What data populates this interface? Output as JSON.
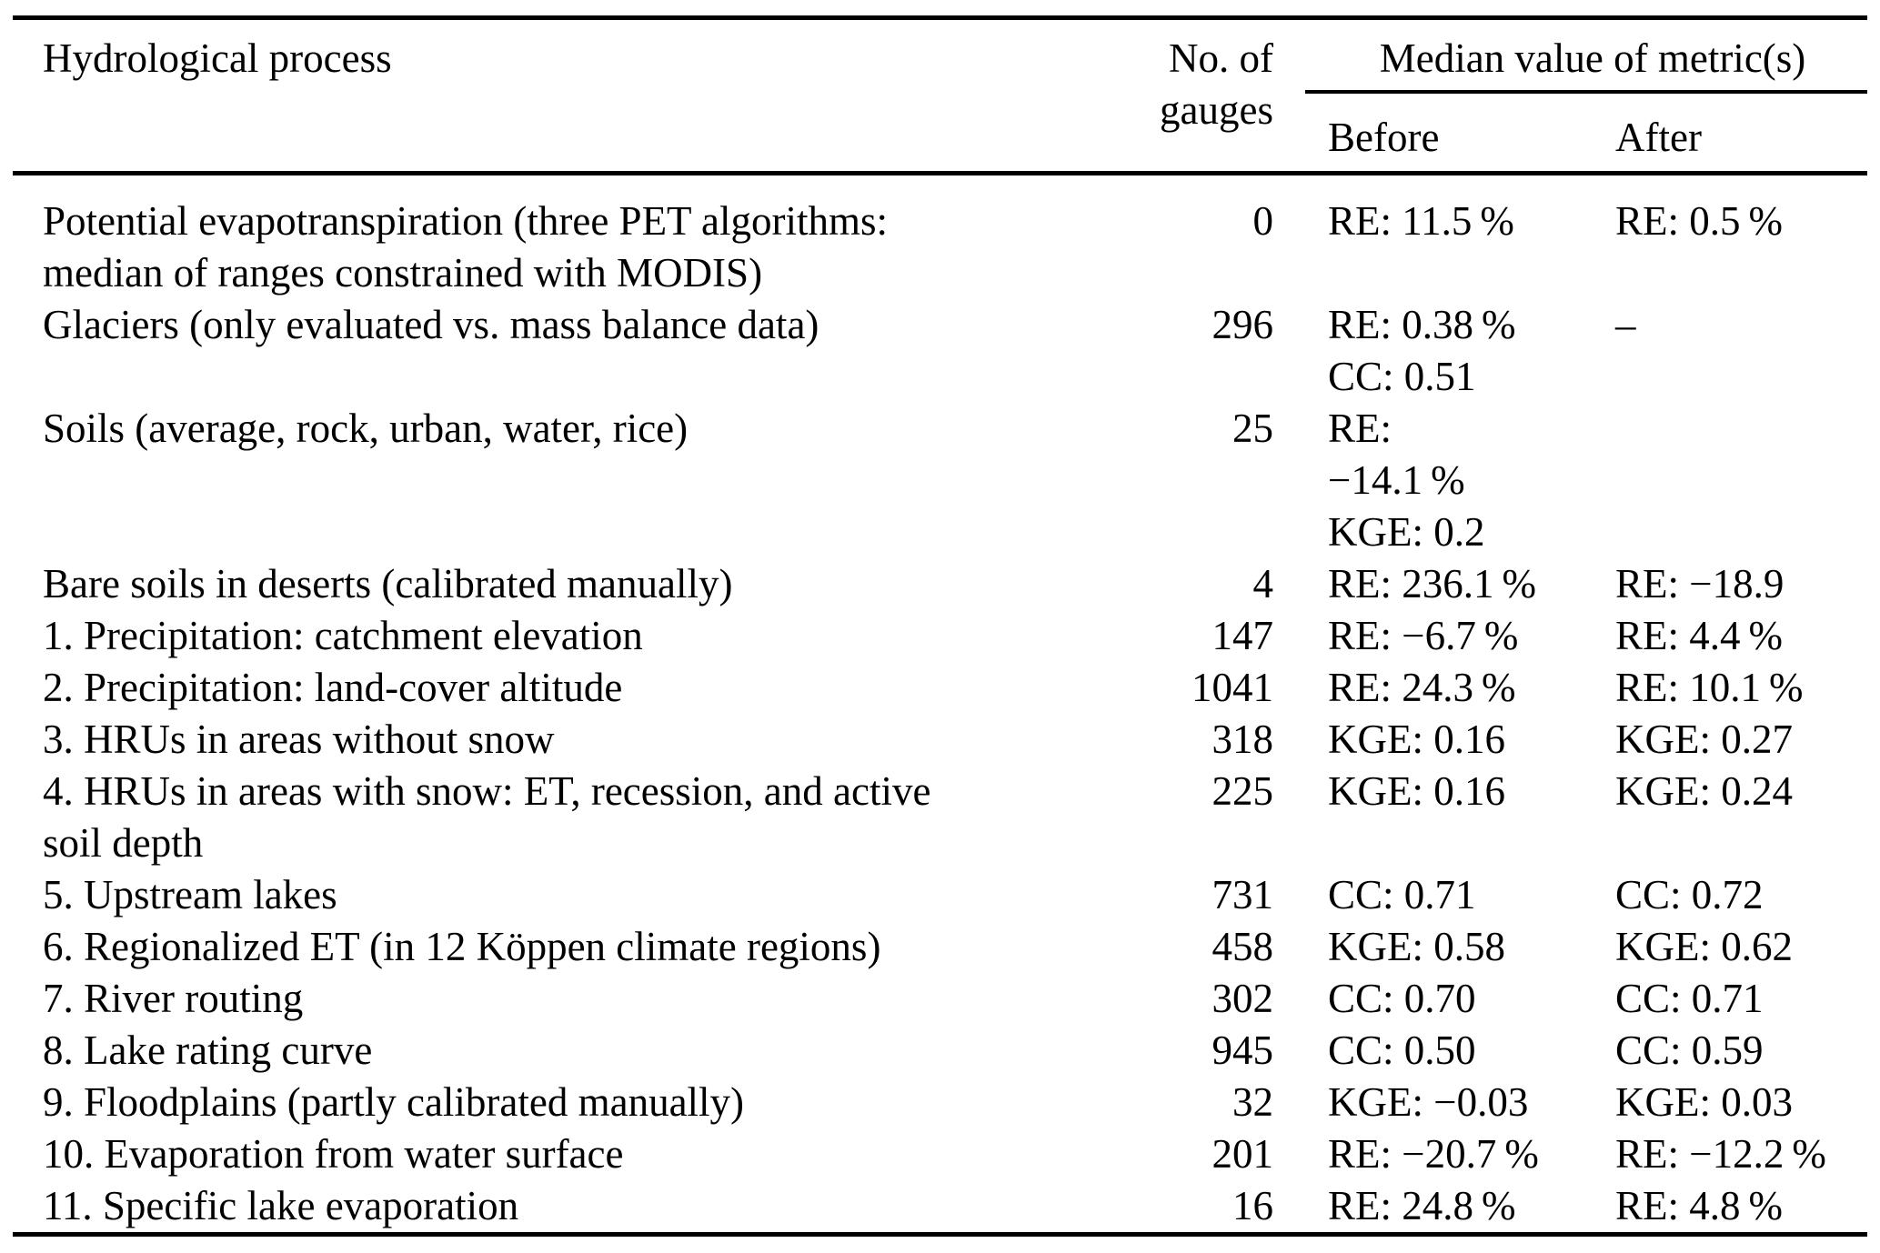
{
  "table": {
    "header": {
      "process": "Hydrological process",
      "gauges": "No. of gauges",
      "metrics_group": "Median value of metric(s)",
      "before": "Before",
      "after": "After"
    },
    "rows": [
      {
        "process": "Potential evapotranspiration (three PET algorithms:\nmedian of ranges constrained with MODIS)",
        "gauges": "0",
        "before": "RE: 11.5 %",
        "after": "RE: 0.5 %"
      },
      {
        "process": "Glaciers (only evaluated vs. mass balance data)",
        "gauges": "296",
        "before": "RE: 0.38 %\nCC: 0.51",
        "after": "–"
      },
      {
        "process": "Soils (average, rock, urban, water, rice)",
        "gauges": "25",
        "before": "RE:\n−14.1 %\nKGE: 0.2",
        "after": ""
      },
      {
        "process": "Bare soils in deserts (calibrated manually)",
        "gauges": "4",
        "before": "RE: 236.1 %",
        "after": "RE: −18.9"
      },
      {
        "process": "1. Precipitation: catchment elevation",
        "gauges": "147",
        "before": "RE: −6.7 %",
        "after": "RE: 4.4 %"
      },
      {
        "process": "2. Precipitation: land-cover altitude",
        "gauges": "1041",
        "before": "RE: 24.3 %",
        "after": "RE: 10.1 %"
      },
      {
        "process": "3. HRUs in areas without snow",
        "gauges": "318",
        "before": "KGE: 0.16",
        "after": "KGE: 0.27"
      },
      {
        "process": "4. HRUs in areas with snow: ET, recession, and active\nsoil depth",
        "gauges": "225",
        "before": "KGE: 0.16",
        "after": "KGE: 0.24"
      },
      {
        "process": "5. Upstream lakes",
        "gauges": "731",
        "before": "CC: 0.71",
        "after": "CC: 0.72"
      },
      {
        "process": "6. Regionalized ET (in 12 Köppen climate regions)",
        "gauges": "458",
        "before": "KGE: 0.58",
        "after": "KGE: 0.62"
      },
      {
        "process": "7. River routing",
        "gauges": "302",
        "before": "CC: 0.70",
        "after": "CC: 0.71"
      },
      {
        "process": "8. Lake rating curve",
        "gauges": "945",
        "before": "CC: 0.50",
        "after": "CC: 0.59"
      },
      {
        "process": "9. Floodplains (partly calibrated manually)",
        "gauges": "32",
        "before": "KGE: −0.03",
        "after": "KGE: 0.03"
      },
      {
        "process": "10. Evaporation from water surface",
        "gauges": "201",
        "before": "RE: −20.7 %",
        "after": "RE: −12.2 %"
      },
      {
        "process": "11. Specific lake evaporation",
        "gauges": "16",
        "before": "RE: 24.8 %",
        "after": "RE: 4.8 %"
      }
    ]
  }
}
